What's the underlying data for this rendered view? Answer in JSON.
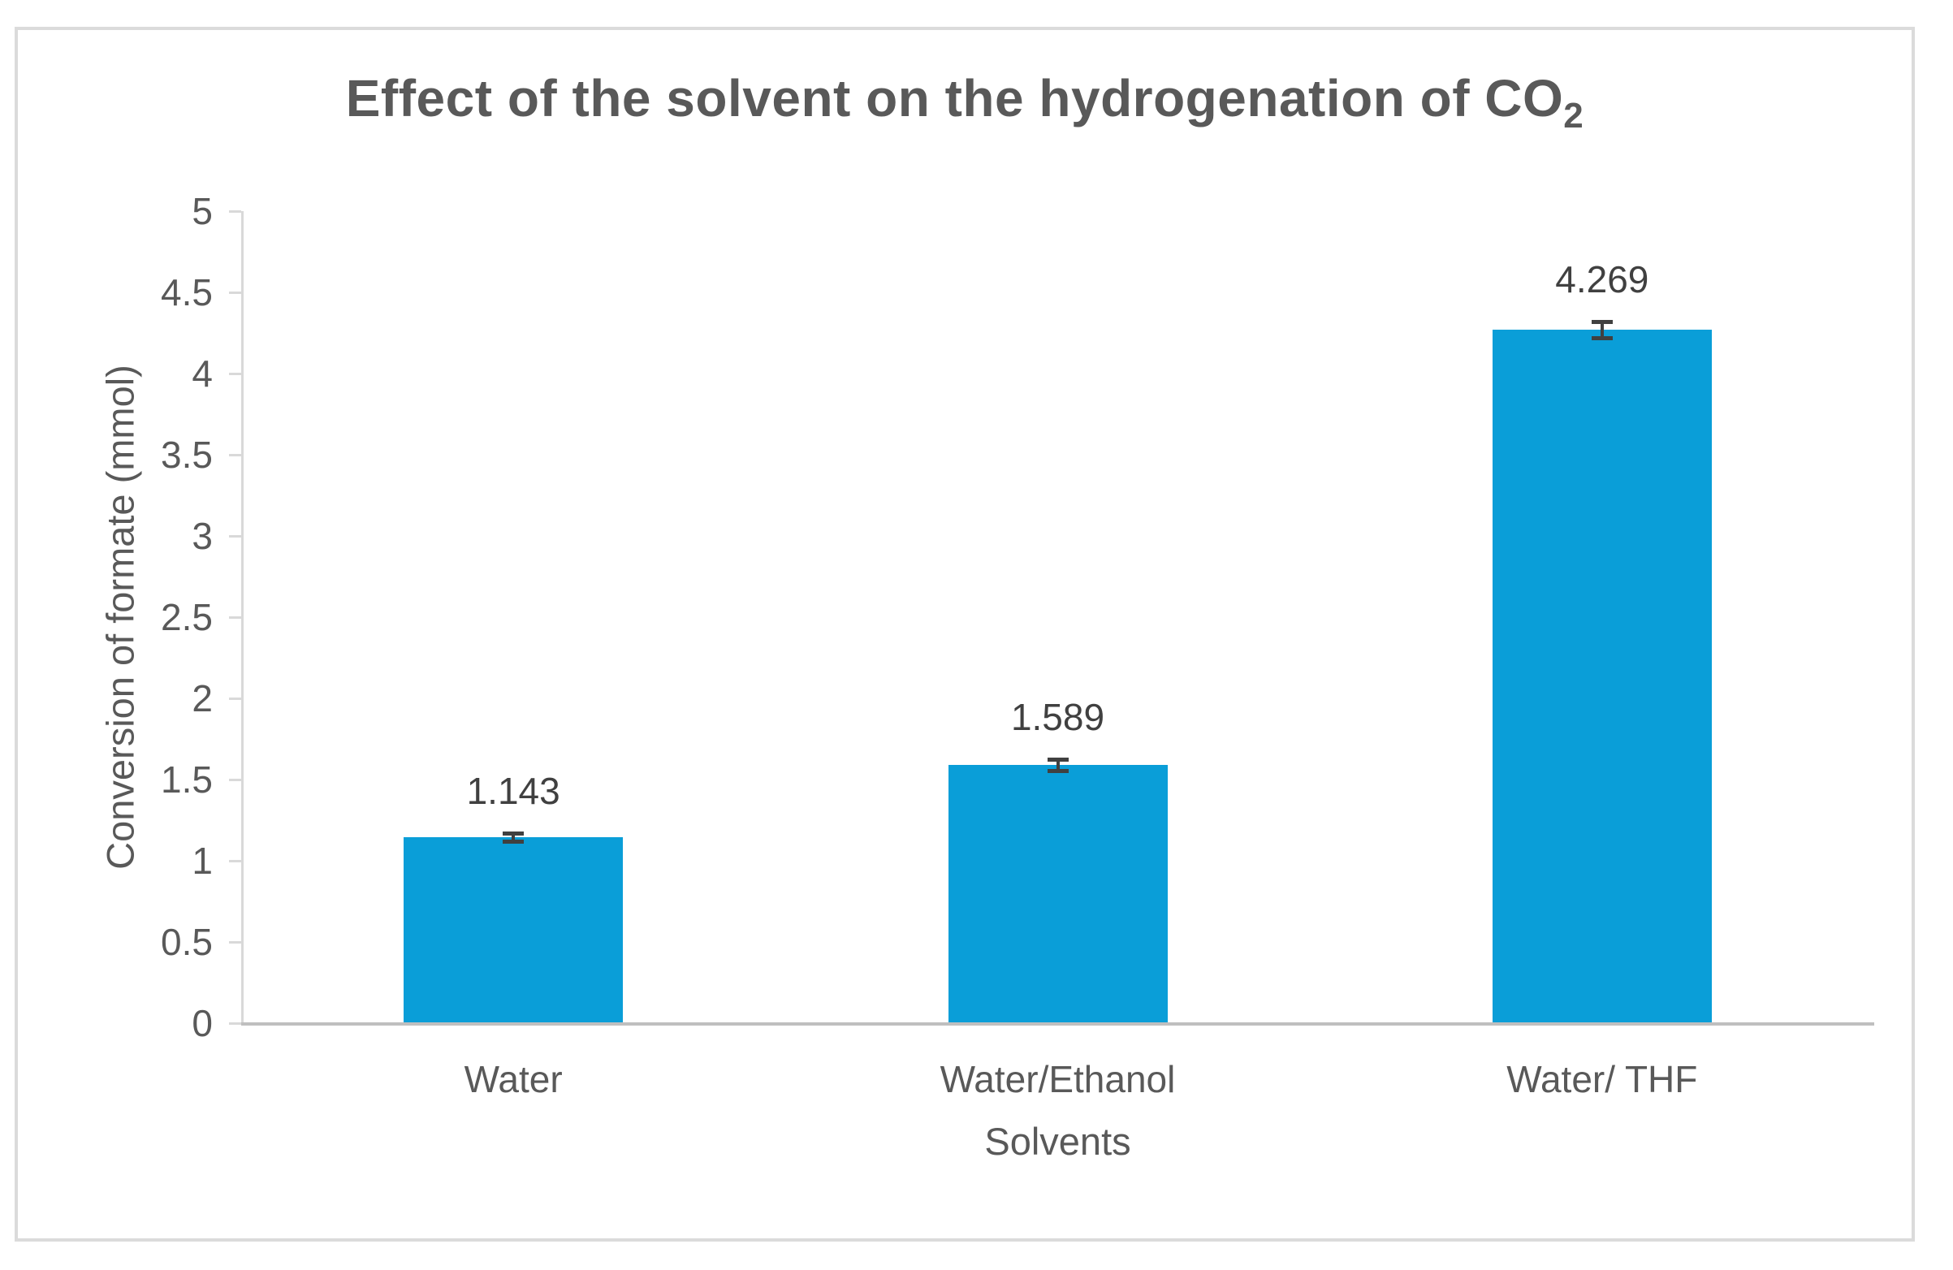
{
  "chart_data": {
    "type": "bar",
    "title": {
      "text": "Effect of the solvent on the hydrogenation of CO",
      "subscript": "2"
    },
    "categories": [
      "Water",
      "Water/Ethanol",
      "Water/ THF"
    ],
    "values": [
      1.143,
      1.589,
      4.269
    ],
    "data_labels": [
      "1.143",
      "1.589",
      "4.269"
    ],
    "error_bars": [
      0.025,
      0.035,
      0.05
    ],
    "xlabel": "Solvents",
    "ylabel": "Conversion of formate (mmol)",
    "ylim": [
      0,
      5
    ],
    "ytick_step": 0.5,
    "ytick_labels": [
      "0",
      "0.5",
      "1",
      "1.5",
      "2",
      "2.5",
      "3",
      "3.5",
      "4",
      "4.5",
      "5"
    ],
    "grid": false,
    "legend": "none",
    "colors": {
      "bar": "#0A9ED8",
      "title_text": "#595959",
      "axis_text": "#595959",
      "data_label_text": "#404040",
      "axis_line": "#D9D9D9",
      "baseline": "#BFBFBF",
      "error_bar": "#404040",
      "frame_border": "#DBDBDB",
      "background": "#FFFFFF"
    }
  }
}
